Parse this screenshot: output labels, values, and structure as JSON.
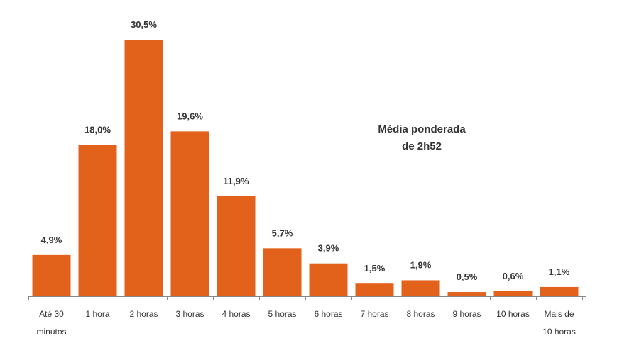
{
  "chart_data": {
    "type": "bar",
    "categories": [
      [
        "Até 30",
        "minutos"
      ],
      [
        "1 hora"
      ],
      [
        "2 horas"
      ],
      [
        "3 horas"
      ],
      [
        "4 horas"
      ],
      [
        "5 horas"
      ],
      [
        "6 horas"
      ],
      [
        "7 horas"
      ],
      [
        "8 horas"
      ],
      [
        "9 horas"
      ],
      [
        "10 horas"
      ],
      [
        "Mais de",
        "10 horas"
      ]
    ],
    "values": [
      4.9,
      18.0,
      30.5,
      19.6,
      11.9,
      5.7,
      3.9,
      1.5,
      1.9,
      0.5,
      0.6,
      1.1
    ],
    "data_labels": [
      "4,9%",
      "18,0%",
      "30,5%",
      "19,6%",
      "11,9%",
      "5,7%",
      "3,9%",
      "1,5%",
      "1,9%",
      "0,5%",
      "0,6%",
      "1,1%"
    ],
    "annotation": [
      "Média ponderada",
      "de 2h52"
    ],
    "ylim": [
      0,
      30.5
    ],
    "bar_color": "#E2621B",
    "axis_color": "#888888",
    "grid": false,
    "legend": "none"
  }
}
